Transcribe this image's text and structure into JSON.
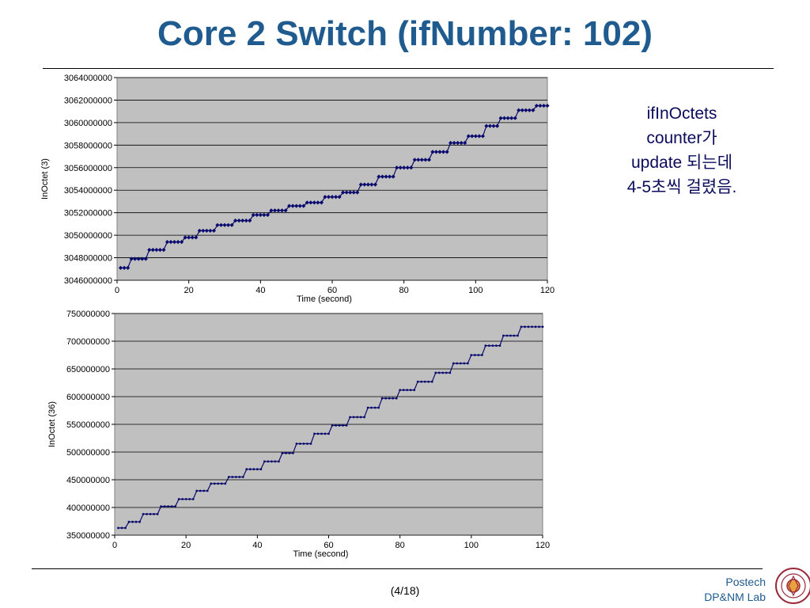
{
  "slide": {
    "title": "Core 2 Switch (ifNumber: 102)",
    "note_lines": [
      "ifInOctets",
      "counter가",
      "update 되는데",
      "4-5초씩 걸렸음."
    ],
    "page_number": "(4/18)",
    "lab_line1": "Postech",
    "lab_line2": "DP&NM Lab",
    "logo_icon": "postech-seal-icon"
  },
  "colors": {
    "title": "#1f5b8f",
    "plot_bg": "#c0c0c0",
    "series": "#0a0a6e",
    "note": "#0b0b5c"
  },
  "chart_data": [
    {
      "type": "line",
      "marker": "diamond",
      "xlabel": "Time (second)",
      "ylabel": "InOctet (3)",
      "xlim": [
        0,
        120
      ],
      "ylim": [
        3046000000,
        3064000000
      ],
      "xticks": [
        0,
        20,
        40,
        60,
        80,
        100,
        120
      ],
      "yticks": [
        3046000000,
        3048000000,
        3050000000,
        3052000000,
        3054000000,
        3056000000,
        3058000000,
        3060000000,
        3062000000,
        3064000000
      ],
      "xtick_labels": [
        "0",
        "20",
        "40",
        "60",
        "80",
        "100",
        "120"
      ],
      "ytick_labels": [
        "3046000000",
        "3048000000",
        "3050000000",
        "3052000000",
        "3054000000",
        "3056000000",
        "3058000000",
        "3060000000",
        "3062000000",
        "3064000000"
      ],
      "grid": "horizontal",
      "legend": "none",
      "step_times": [
        1,
        4,
        9,
        14,
        19,
        23,
        28,
        33,
        38,
        43,
        48,
        53,
        58,
        63,
        68,
        73,
        78,
        83,
        88,
        93,
        98,
        103,
        107,
        112,
        117
      ],
      "step_values": [
        3047100000,
        3047900000,
        3048700000,
        3049400000,
        3049800000,
        3050400000,
        3050900000,
        3051300000,
        3051800000,
        3052200000,
        3052600000,
        3052900000,
        3053400000,
        3053800000,
        3054500000,
        3055200000,
        3056000000,
        3056700000,
        3057400000,
        3058200000,
        3058800000,
        3059700000,
        3060400000,
        3061100000,
        3061500000
      ],
      "x_end": 120
    },
    {
      "type": "line",
      "marker": "dot",
      "xlabel": "Time (second)",
      "ylabel": "InOctet (36)",
      "xlim": [
        0,
        120
      ],
      "ylim": [
        350000000,
        750000000
      ],
      "xticks": [
        0,
        20,
        40,
        60,
        80,
        100,
        120
      ],
      "yticks": [
        350000000,
        400000000,
        450000000,
        500000000,
        550000000,
        600000000,
        650000000,
        700000000,
        750000000
      ],
      "xtick_labels": [
        "0",
        "20",
        "40",
        "60",
        "80",
        "100",
        "120"
      ],
      "ytick_labels": [
        "350000000",
        "400000000",
        "450000000",
        "500000000",
        "550000000",
        "600000000",
        "650000000",
        "700000000",
        "750000000"
      ],
      "grid": "horizontal",
      "legend": "none",
      "step_times": [
        1,
        4,
        8,
        13,
        18,
        23,
        27,
        32,
        37,
        42,
        47,
        51,
        56,
        61,
        66,
        71,
        75,
        80,
        85,
        90,
        95,
        100,
        104,
        109,
        114,
        118
      ],
      "step_values": [
        363000000,
        374000000,
        388000000,
        402000000,
        415000000,
        430000000,
        443000000,
        455000000,
        469000000,
        483000000,
        498000000,
        515000000,
        533000000,
        548000000,
        563000000,
        580000000,
        597000000,
        612000000,
        627000000,
        643000000,
        660000000,
        675000000,
        692000000,
        710000000,
        726000000,
        726000000
      ],
      "x_end": 120
    }
  ]
}
